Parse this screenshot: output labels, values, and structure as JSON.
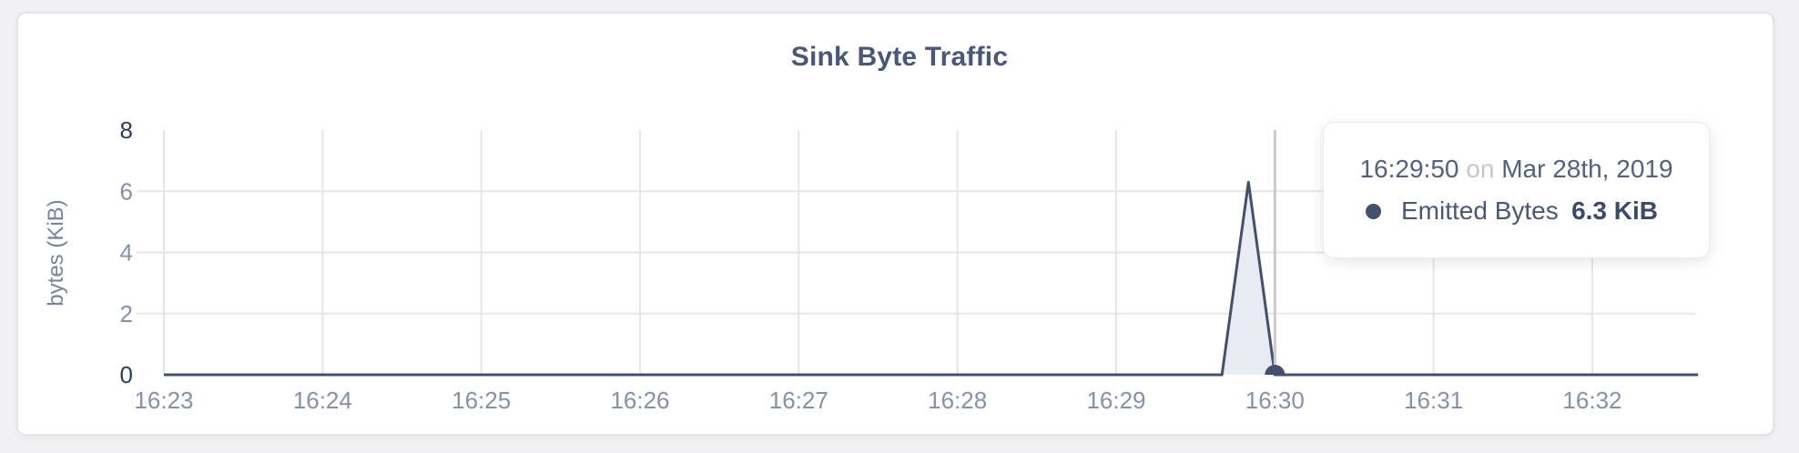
{
  "card": {
    "title": "Sink Byte Traffic"
  },
  "chart_data": {
    "type": "area",
    "title": "Sink Byte Traffic",
    "xlabel": "",
    "ylabel": "bytes (KiB)",
    "ylim": [
      0,
      8
    ],
    "y_ticks": [
      0,
      2,
      4,
      6,
      8
    ],
    "x_ticks": [
      "16:23",
      "16:24",
      "16:25",
      "16:26",
      "16:27",
      "16:28",
      "16:29",
      "16:30",
      "16:31",
      "16:32"
    ],
    "x_domain_seconds": [
      0,
      580
    ],
    "grid": true,
    "legend_position": "none",
    "series": [
      {
        "name": "Emitted Bytes",
        "color": "#44506c",
        "fill_color": "#e9ebf2",
        "points_seconds_value": [
          [
            0,
            0
          ],
          [
            400,
            0
          ],
          [
            410,
            6.3
          ],
          [
            420,
            0
          ],
          [
            580,
            0
          ]
        ]
      }
    ],
    "highlight": {
      "crosshair_x_seconds": 420,
      "dot_value": 0
    }
  },
  "tooltip": {
    "time": "16:29:50",
    "preposition": "on",
    "date": "Mar 28th, 2019",
    "series_label": "Emitted Bytes",
    "value": "6.3 KiB"
  },
  "colors": {
    "accent_line": "#44506c",
    "area_fill": "#e9ebf2",
    "gridline": "#e6e6e8",
    "crosshair": "#cacacd",
    "tick_label_light": "#8591a8",
    "tick_label_dark": "#2e3c58",
    "title_text": "#4a5878"
  }
}
